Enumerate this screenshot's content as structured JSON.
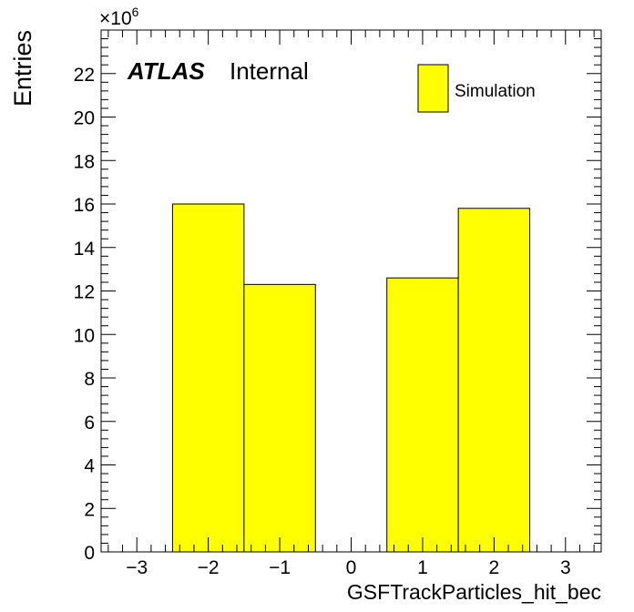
{
  "chart_data": {
    "type": "bar",
    "histogram": true,
    "xlabel": "GSFTrackParticles_hit_bec",
    "ylabel": "Entries",
    "y_multiplier": {
      "base": "×10",
      "exponent": "6"
    },
    "xlim": [
      -3.5,
      3.5
    ],
    "ylim": [
      0,
      24
    ],
    "x_ticks": [
      -3,
      -2,
      -1,
      0,
      1,
      2,
      3
    ],
    "x_tick_labels": [
      "−3",
      "−2",
      "−1",
      "0",
      "1",
      "2",
      "3"
    ],
    "y_ticks": [
      0,
      2,
      4,
      6,
      8,
      10,
      12,
      14,
      16,
      18,
      20,
      22
    ],
    "y_tick_labels": [
      "0",
      "2",
      "4",
      "6",
      "8",
      "10",
      "12",
      "14",
      "16",
      "18",
      "20",
      "22"
    ],
    "bins": [
      {
        "low": -2.5,
        "high": -1.5,
        "value": 16.0
      },
      {
        "low": -1.5,
        "high": -0.5,
        "value": 12.3
      },
      {
        "low": 0.5,
        "high": 1.5,
        "value": 12.6
      },
      {
        "low": 1.5,
        "high": 2.5,
        "value": 15.8
      }
    ],
    "series": [
      {
        "name": "Simulation",
        "color": "#ffff00"
      }
    ],
    "legend": {
      "position": "top-right",
      "entries": [
        "Simulation"
      ]
    },
    "annotation": {
      "bold_italic": "ATLAS",
      "normal": "Internal"
    },
    "grid": false,
    "colors": {
      "fill": "#ffff00",
      "line": "#000000"
    }
  }
}
